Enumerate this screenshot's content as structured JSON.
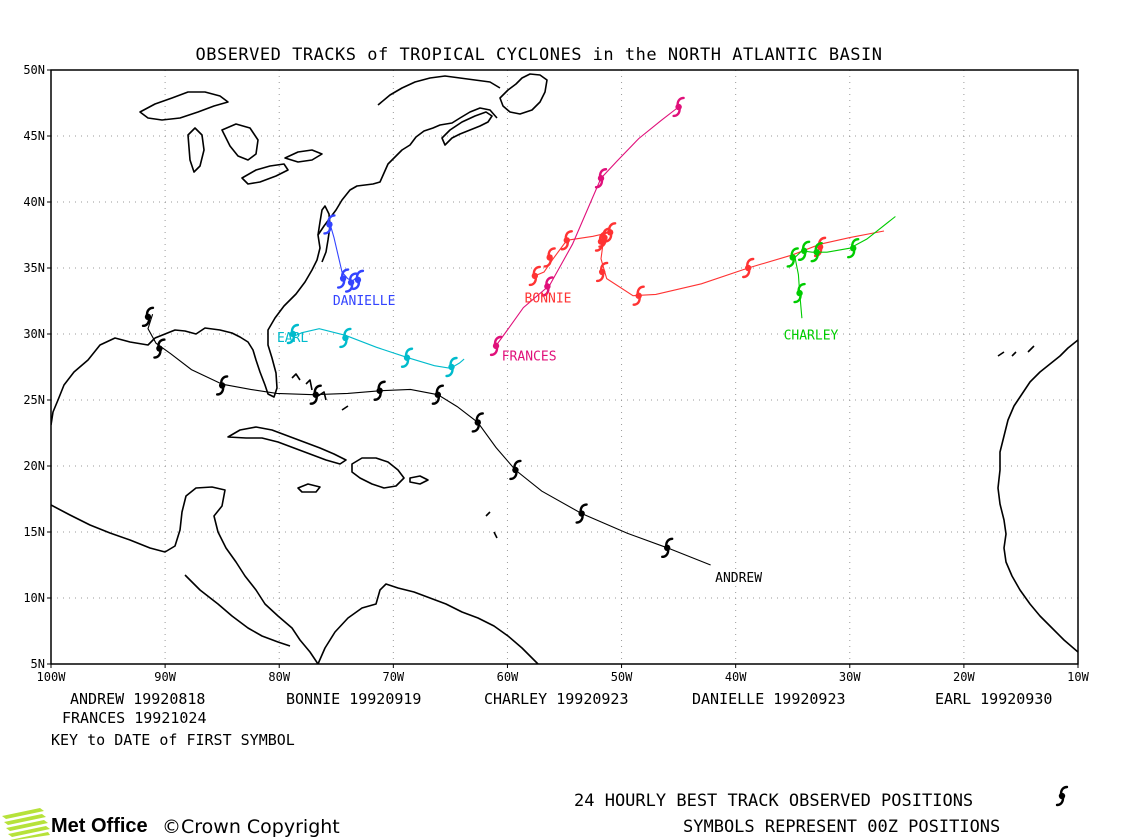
{
  "title": "OBSERVED TRACKS of TROPICAL CYCLONES in the NORTH ATLANTIC BASIN",
  "axes": {
    "lon_labels": [
      "100W",
      "90W",
      "80W",
      "70W",
      "60W",
      "50W",
      "40W",
      "30W",
      "20W",
      "10W"
    ],
    "lat_labels": [
      "5N",
      "10N",
      "15N",
      "20N",
      "25N",
      "30N",
      "35N",
      "40N",
      "45N",
      "50N"
    ]
  },
  "storms": [
    {
      "name": "ANDREW",
      "label": "ANDREW",
      "color": "#000000",
      "track": [
        [
          -42.2,
          12.5
        ],
        [
          -46,
          13.8
        ],
        [
          -49.5,
          14.9
        ],
        [
          -53.5,
          16.4
        ],
        [
          -57,
          18.1
        ],
        [
          -59.3,
          19.7
        ],
        [
          -61,
          21.4
        ],
        [
          -62.6,
          23.3
        ],
        [
          -64.4,
          24.5
        ],
        [
          -66.1,
          25.4
        ],
        [
          -68.5,
          25.8
        ],
        [
          -71.2,
          25.7
        ],
        [
          -74,
          25.5
        ],
        [
          -77,
          25.4
        ],
        [
          -80.2,
          25.5
        ],
        [
          -82.5,
          25.8
        ],
        [
          -85,
          26.2
        ],
        [
          -87.7,
          27.3
        ],
        [
          -89.5,
          28.5
        ],
        [
          -90.8,
          29.3
        ],
        [
          -91.5,
          30.4
        ],
        [
          -91.1,
          31.5
        ]
      ],
      "symbols": [
        [
          -46,
          13.8
        ],
        [
          -53.5,
          16.4
        ],
        [
          -59.3,
          19.7
        ],
        [
          -62.6,
          23.3
        ],
        [
          -66.1,
          25.4
        ],
        [
          -71.2,
          25.7
        ],
        [
          -76.8,
          25.4
        ],
        [
          -85,
          26.1
        ],
        [
          -90.5,
          28.9
        ],
        [
          -91.5,
          31.3
        ]
      ],
      "label_pos": [
        -41.8,
        11.2
      ]
    },
    {
      "name": "BONNIE",
      "label": "BONNIE",
      "color": "#ff3333",
      "track": [
        [
          -27,
          37.8
        ],
        [
          -30,
          37.3
        ],
        [
          -32.6,
          36.8
        ],
        [
          -35,
          36.0
        ],
        [
          -38.9,
          35.0
        ],
        [
          -43,
          33.8
        ],
        [
          -47,
          33.0
        ],
        [
          -49,
          32.9
        ],
        [
          -51.3,
          34.2
        ],
        [
          -51.8,
          35.7
        ],
        [
          -51.6,
          37.0
        ],
        [
          -51.4,
          37.7
        ],
        [
          -51.0,
          37.7
        ],
        [
          -52.5,
          37.4
        ],
        [
          -54.8,
          37.1
        ],
        [
          -56,
          35.7
        ],
        [
          -56.8,
          34.7
        ],
        [
          -57.6,
          34.4
        ]
      ],
      "symbols": [
        [
          -32.6,
          36.6
        ],
        [
          -38.9,
          35.0
        ],
        [
          -48.5,
          32.9
        ],
        [
          -51.7,
          34.7
        ],
        [
          -51.8,
          37.0
        ],
        [
          -51.0,
          37.7
        ],
        [
          -51.5,
          37.3
        ],
        [
          -54.8,
          37.1
        ],
        [
          -56.3,
          35.8
        ],
        [
          -57.6,
          34.4
        ]
      ],
      "label_pos": [
        -58.5,
        32.4
      ]
    },
    {
      "name": "CHARLEY",
      "label": "CHARLEY",
      "color": "#00cc00",
      "track": [
        [
          -26,
          38.9
        ],
        [
          -28.5,
          37.2
        ],
        [
          -30,
          36.5
        ],
        [
          -32,
          36.2
        ],
        [
          -33.3,
          36.2
        ],
        [
          -34.2,
          36.3
        ],
        [
          -34.8,
          35.8
        ],
        [
          -34.5,
          34.5
        ],
        [
          -34.4,
          33.2
        ],
        [
          -34.2,
          31.2
        ]
      ],
      "symbols": [
        [
          -29.7,
          36.5
        ],
        [
          -32.9,
          36.2
        ],
        [
          -34.0,
          36.3
        ],
        [
          -35.0,
          35.8
        ],
        [
          -34.4,
          33.1
        ]
      ],
      "label_pos": [
        -35.8,
        29.6
      ]
    },
    {
      "name": "DANIELLE",
      "label": "DANIELLE",
      "color": "#3344ff",
      "track": [
        [
          -75.6,
          38.5
        ],
        [
          -75.2,
          37.3
        ],
        [
          -74.8,
          35.8
        ],
        [
          -74.5,
          34.7
        ],
        [
          -74.0,
          34.2
        ],
        [
          -73.6,
          34.0
        ],
        [
          -73.2,
          34.3
        ],
        [
          -73.1,
          33.8
        ]
      ],
      "symbols": [
        [
          -75.6,
          38.3
        ],
        [
          -74.4,
          34.2
        ],
        [
          -73.7,
          33.9
        ],
        [
          -73.1,
          34.1
        ]
      ],
      "label_pos": [
        -75.3,
        32.2
      ]
    },
    {
      "name": "EARL",
      "label": "EARL",
      "color": "#00bbcc",
      "track": [
        [
          -78.8,
          29.8
        ],
        [
          -78,
          30.1
        ],
        [
          -76.5,
          30.4
        ],
        [
          -74.2,
          29.9
        ],
        [
          -71.5,
          29.0
        ],
        [
          -68.7,
          28.2
        ],
        [
          -66.4,
          27.6
        ],
        [
          -65.0,
          27.4
        ],
        [
          -64.2,
          27.8
        ],
        [
          -63.8,
          28.1
        ]
      ],
      "symbols": [
        [
          -78.8,
          30.0
        ],
        [
          -74.2,
          29.7
        ],
        [
          -68.8,
          28.2
        ],
        [
          -64.9,
          27.5
        ]
      ],
      "label_pos": [
        -80.2,
        29.4
      ]
    },
    {
      "name": "FRANCES",
      "label": "FRANCES",
      "color": "#e0107a",
      "track": [
        [
          -61.1,
          29.0
        ],
        [
          -60,
          30.3
        ],
        [
          -58.6,
          32.0
        ],
        [
          -56.3,
          33.7
        ],
        [
          -54.3,
          36.8
        ],
        [
          -52.7,
          40.0
        ],
        [
          -51.8,
          41.8
        ],
        [
          -50.4,
          43.1
        ],
        [
          -48.5,
          44.8
        ],
        [
          -46.5,
          46.2
        ],
        [
          -45,
          47.2
        ]
      ],
      "symbols": [
        [
          -61.0,
          29.1
        ],
        [
          -56.5,
          33.6
        ],
        [
          -51.8,
          41.8
        ],
        [
          -45,
          47.2
        ]
      ],
      "label_pos": [
        -60.5,
        28.0
      ]
    }
  ],
  "key": {
    "row1": [
      "ANDREW 19920818",
      "BONNIE 19920919",
      "CHARLEY 19920923",
      "DANIELLE 19920923",
      "EARL 19920930"
    ],
    "row2": [
      "FRANCES 19921024"
    ],
    "note": "KEY to DATE of FIRST SYMBOL"
  },
  "footer": {
    "line1": "24 HOURLY BEST TRACK OBSERVED POSITIONS",
    "line2": "SYMBOLS REPRESENT 00Z POSITIONS",
    "logo": "Met Office",
    "copyright": "©Crown Copyright"
  },
  "map_bounds": {
    "lon": [
      -100,
      -10
    ],
    "lat": [
      5,
      50
    ]
  }
}
